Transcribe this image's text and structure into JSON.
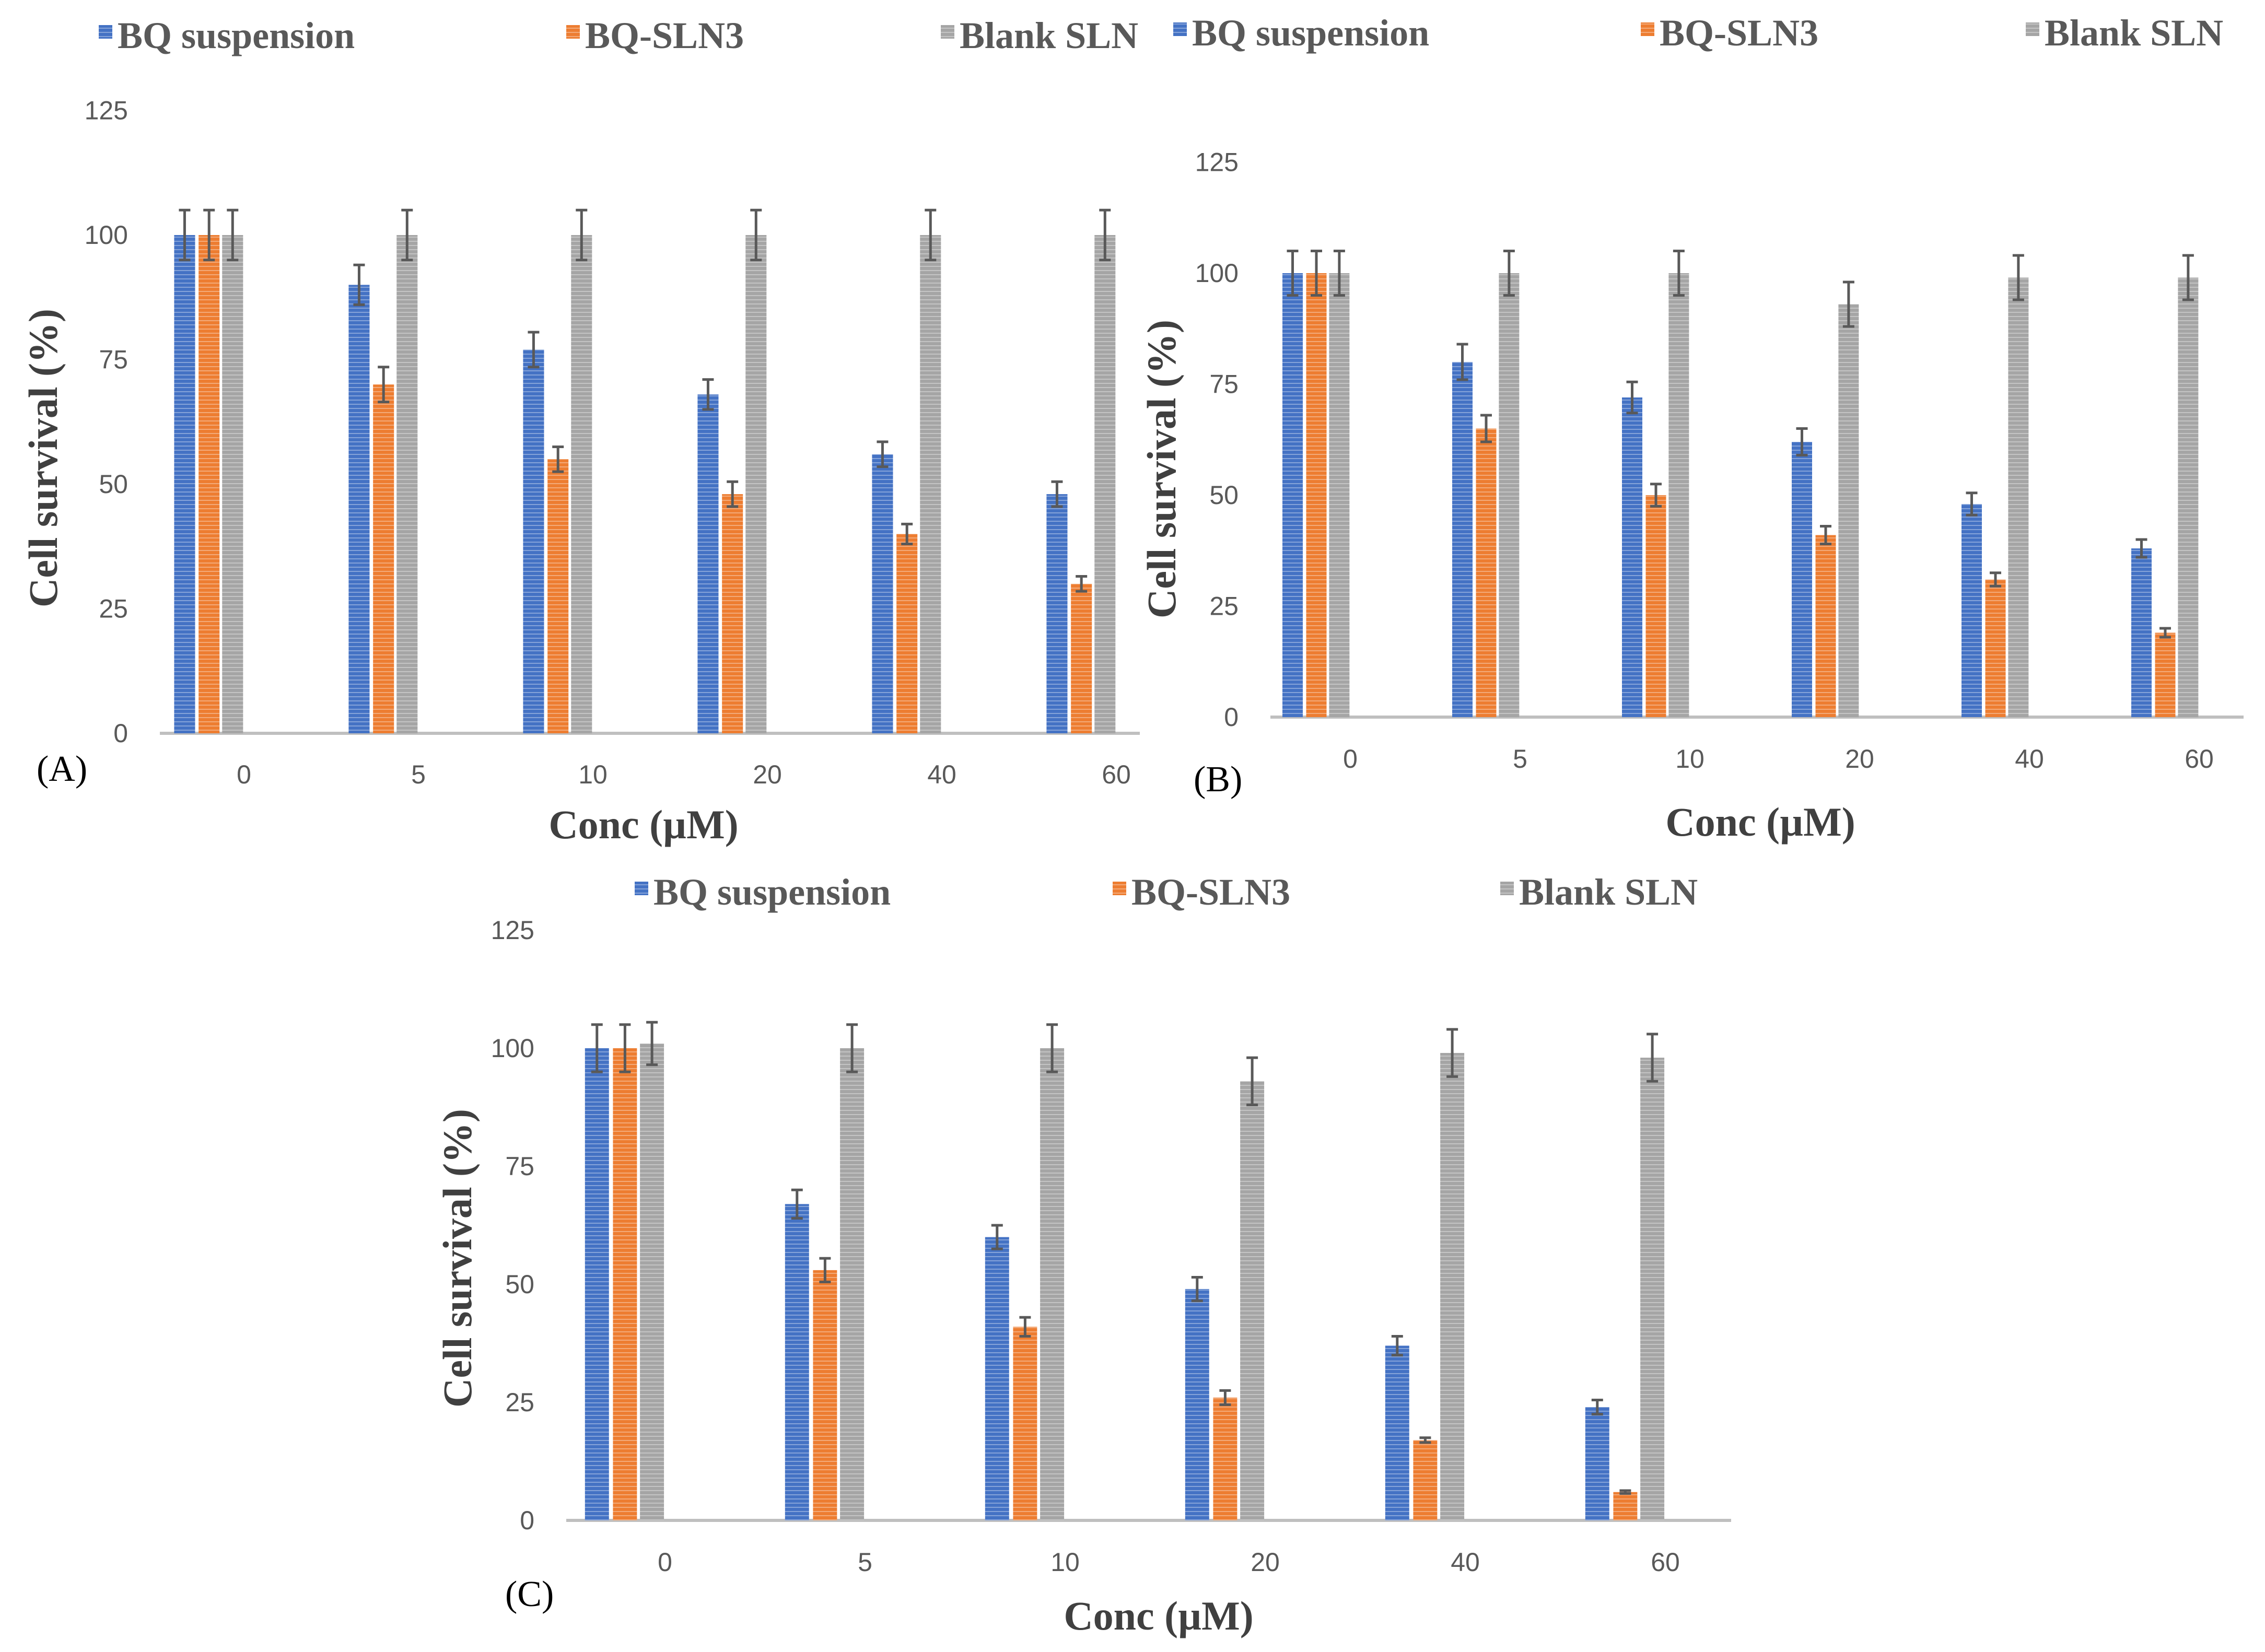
{
  "colors": {
    "BQ suspension": "#4472c4",
    "BQ-SLN3": "#ed7d31",
    "Blank SLN": "#a5a5a5",
    "axis": "#bfbfbf",
    "errorbar": "#595959"
  },
  "chart_data": [
    {
      "type": "bar",
      "panel_label": "(A)",
      "xlabel": "Conc (µM)",
      "ylabel": "Cell survival (%)",
      "ylim": [
        0,
        125
      ],
      "yticks": [
        "0",
        "25",
        "50",
        "75",
        "100",
        "125"
      ],
      "categories": [
        "0",
        "5",
        "10",
        "20",
        "40",
        "60"
      ],
      "legend": [
        "BQ suspension",
        "BQ-SLN3",
        "Blank SLN"
      ],
      "legend_position": "top",
      "series": [
        {
          "name": "BQ suspension",
          "values": [
            100,
            90,
            77,
            68,
            56,
            48
          ],
          "errors": [
            5,
            4,
            3.5,
            3,
            2.5,
            2.5
          ]
        },
        {
          "name": "BQ-SLN3",
          "values": [
            100,
            70,
            55,
            48,
            40,
            30
          ],
          "errors": [
            5,
            3.5,
            2.5,
            2.5,
            2,
            1.5
          ]
        },
        {
          "name": "Blank SLN",
          "values": [
            100,
            100,
            100,
            100,
            100,
            100
          ],
          "errors": [
            5,
            5,
            5,
            5,
            5,
            5
          ]
        }
      ]
    },
    {
      "type": "bar",
      "panel_label": "(B)",
      "xlabel": "Conc (µM)",
      "ylabel": "Cell survival (%)",
      "ylim": [
        0,
        125
      ],
      "yticks": [
        "0",
        "25",
        "50",
        "75",
        "100",
        "125"
      ],
      "categories": [
        "0",
        "5",
        "10",
        "20",
        "40",
        "60"
      ],
      "legend": [
        "BQ suspension",
        "BQ-SLN3",
        "Blank SLN"
      ],
      "legend_position": "top",
      "series": [
        {
          "name": "BQ suspension",
          "values": [
            100,
            80,
            72,
            62,
            48,
            38
          ],
          "errors": [
            5,
            4,
            3.5,
            3,
            2.5,
            2
          ]
        },
        {
          "name": "BQ-SLN3",
          "values": [
            100,
            65,
            50,
            41,
            31,
            19
          ],
          "errors": [
            5,
            3,
            2.5,
            2,
            1.5,
            1
          ]
        },
        {
          "name": "Blank SLN",
          "values": [
            100,
            100,
            100,
            93,
            99,
            99
          ],
          "errors": [
            5,
            5,
            5,
            5,
            5,
            5
          ]
        }
      ]
    },
    {
      "type": "bar",
      "panel_label": "(C)",
      "xlabel": "Conc (µM)",
      "ylabel": "Cell survival (%)",
      "ylim": [
        0,
        125
      ],
      "yticks": [
        "0",
        "25",
        "50",
        "75",
        "100",
        "125"
      ],
      "categories": [
        "0",
        "5",
        "10",
        "20",
        "40",
        "60"
      ],
      "legend": [
        "BQ suspension",
        "BQ-SLN3",
        "Blank SLN"
      ],
      "legend_position": "top",
      "series": [
        {
          "name": "BQ suspension",
          "values": [
            100,
            67,
            60,
            49,
            37,
            24
          ],
          "errors": [
            5,
            3,
            2.5,
            2.5,
            2,
            1.5
          ]
        },
        {
          "name": "BQ-SLN3",
          "values": [
            100,
            53,
            41,
            26,
            17,
            6
          ],
          "errors": [
            5,
            2.5,
            2,
            1.5,
            0.5,
            0.3
          ]
        },
        {
          "name": "Blank SLN",
          "values": [
            101,
            100,
            100,
            93,
            99,
            98
          ],
          "errors": [
            4.5,
            5,
            5,
            5,
            5,
            5
          ]
        }
      ]
    }
  ]
}
